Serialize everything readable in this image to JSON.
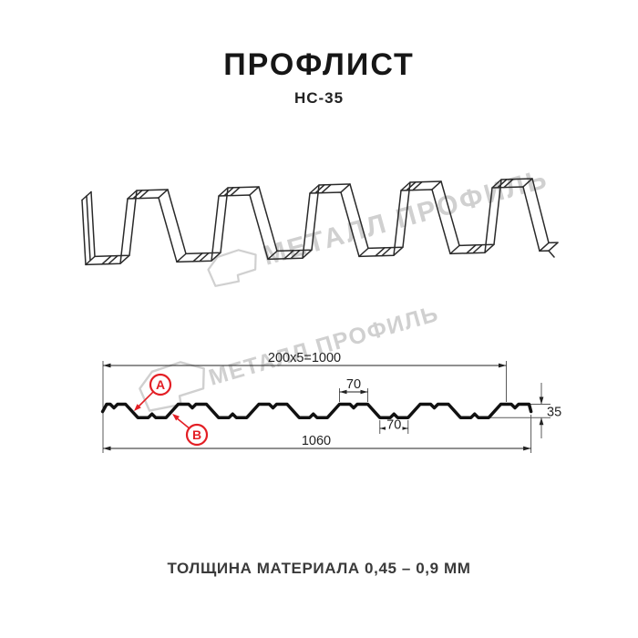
{
  "header": {
    "title": "ПРОФЛИСТ",
    "subtitle": "НС-35"
  },
  "footer": {
    "note": "ТОЛЩИНА МАТЕРИАЛА 0,45 – 0,9 ММ"
  },
  "watermark": {
    "text": "МЕТАЛЛ ПРОФИЛЬ"
  },
  "drawing": {
    "dimensions": {
      "coverage": "200x5=1000",
      "rib_top_width": "70",
      "rib_bottom_width": "70",
      "profile_height": "35",
      "overall_width": "1060"
    },
    "markers": [
      {
        "id": "A",
        "letter": "А"
      },
      {
        "id": "B",
        "letter": "В"
      }
    ]
  },
  "colors": {
    "accent_red": "#e31e24",
    "line_color": "#2a2a2a",
    "watermark_color": "#d0d0d0"
  }
}
